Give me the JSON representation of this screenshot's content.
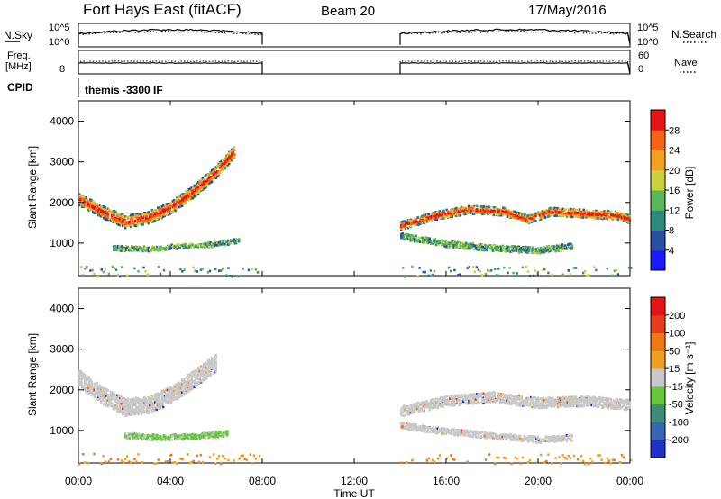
{
  "header": {
    "station": "Fort Hays East (fitACF)",
    "beam": "Beam 20",
    "date": "17/May/2016"
  },
  "noise_panel": {
    "left_label": "N.Sky",
    "right_label": "N.Search",
    "ticks": [
      "10^5",
      "10^0"
    ]
  },
  "freq_panel": {
    "left_label": "Freq.",
    "left_unit": "[MHz]",
    "left_tick": "8",
    "right_label": "Nave",
    "right_ticks": [
      "60",
      "0"
    ]
  },
  "cpid": {
    "label": "CPID",
    "value": "themis -3300 IF"
  },
  "time_axis": {
    "label": "Time UT",
    "ticks": [
      "00:00",
      "04:00",
      "08:00",
      "12:00",
      "16:00",
      "20:00",
      "00:00"
    ]
  },
  "chart_data": [
    {
      "type": "heatmap",
      "name": "power",
      "ylabel": "Slant Range [km]",
      "ylim": [
        200,
        4500
      ],
      "yticks": [
        "4000",
        "3000",
        "2000",
        "1000"
      ],
      "xlim_hours": [
        0,
        24
      ],
      "data_gap_hours": [
        8,
        14
      ],
      "colorbar_label": "Power [dB]",
      "colorbar_ticks": [
        "28",
        "24",
        "20",
        "16",
        "12",
        "8",
        "4"
      ],
      "colorbar_colors": [
        "#1a1aff",
        "#2850a0",
        "#2e8a78",
        "#58b858",
        "#c8d23c",
        "#f4a020",
        "#f46414",
        "#e61414"
      ],
      "scatter_bands": [
        {
          "t": [
            0.0,
            1.0,
            2.0,
            3.0,
            4.0,
            5.0,
            6.0,
            6.8
          ],
          "r": [
            2100,
            1800,
            1550,
            1650,
            1900,
            2300,
            2800,
            3300
          ],
          "width": 300,
          "level": "high"
        },
        {
          "t": [
            1.5,
            3.0,
            4.5,
            6.0,
            7.0
          ],
          "r": [
            900,
            880,
            950,
            1000,
            1100
          ],
          "width": 120,
          "level": "mid"
        },
        {
          "t": [
            14.0,
            15.5,
            17.0,
            18.5,
            19.5,
            20.5,
            22.0,
            23.5,
            24.0
          ],
          "r": [
            1450,
            1700,
            1850,
            1800,
            1600,
            1800,
            1750,
            1700,
            1600
          ],
          "width": 200,
          "level": "high"
        },
        {
          "t": [
            14.0,
            16.0,
            18.0,
            20.0,
            21.5
          ],
          "r": [
            1200,
            1000,
            900,
            850,
            950
          ],
          "width": 150,
          "level": "mid"
        }
      ]
    },
    {
      "type": "heatmap",
      "name": "velocity",
      "ylabel": "Slant Range [km]",
      "ylim": [
        200,
        4500
      ],
      "yticks": [
        "4000",
        "3000",
        "2000",
        "1000"
      ],
      "xlim_hours": [
        0,
        24
      ],
      "data_gap_hours": [
        8,
        14
      ],
      "colorbar_label": "Velocity [m s⁻¹]",
      "colorbar_ticks": [
        "200",
        "100",
        "50",
        "15",
        "-15",
        "-50",
        "-100",
        "-200"
      ],
      "colorbar_colors": [
        "#1e32c8",
        "#3a64b4",
        "#3c8c78",
        "#64c83c",
        "#c8c8c8",
        "#f0a020",
        "#f07814",
        "#e63c1e",
        "#e61414"
      ],
      "ground_scatter_color": "#c8c8c8",
      "scatter_bands": [
        {
          "t": [
            0.0,
            1.0,
            2.0,
            3.0,
            4.0,
            5.0,
            6.0
          ],
          "r": [
            2300,
            1900,
            1600,
            1650,
            1900,
            2300,
            2700
          ],
          "width": 420,
          "level": "ground"
        },
        {
          "t": [
            2.0,
            3.5,
            5.0,
            6.5
          ],
          "r": [
            900,
            850,
            880,
            950
          ],
          "width": 140,
          "level": "positive"
        },
        {
          "t": [
            14.0,
            16.0,
            18.0,
            20.0,
            22.0,
            24.0
          ],
          "r": [
            1500,
            1750,
            1850,
            1700,
            1750,
            1650
          ],
          "width": 250,
          "level": "ground"
        },
        {
          "t": [
            14.0,
            16.0,
            18.0,
            20.0,
            21.5
          ],
          "r": [
            1150,
            1000,
            900,
            800,
            850
          ],
          "width": 150,
          "level": "ground"
        }
      ]
    }
  ]
}
